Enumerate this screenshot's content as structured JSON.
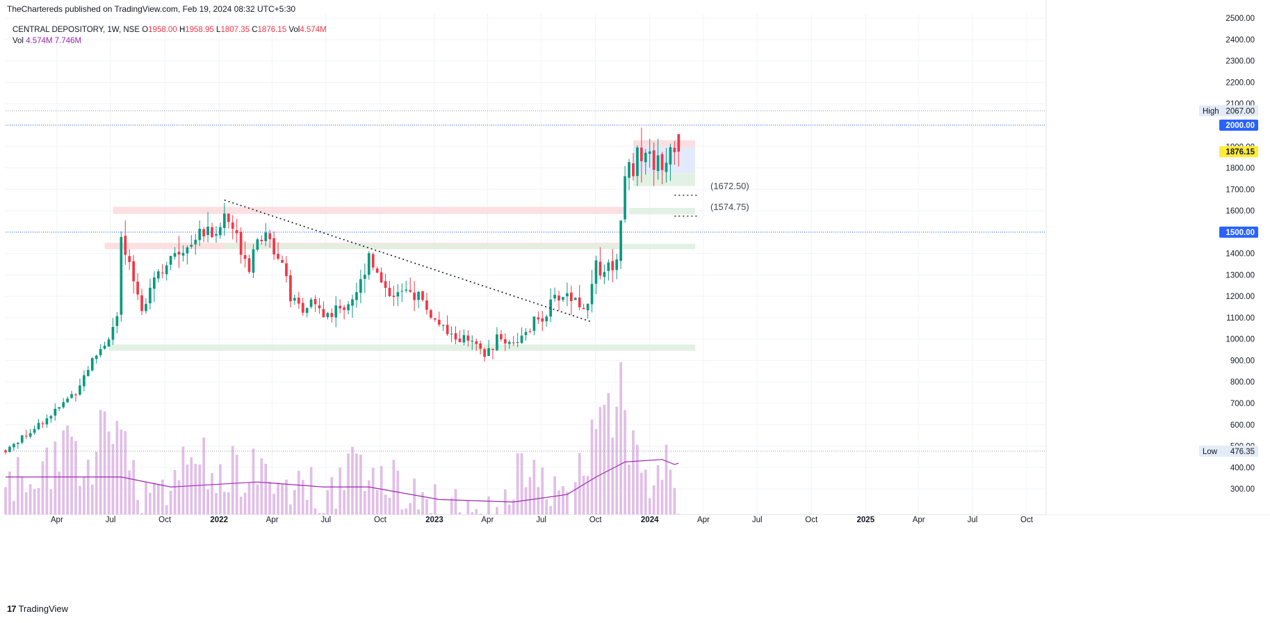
{
  "header": {
    "publisher_line": "TheChartereds published on TradingView.com, Feb 19, 2024 08:32 UTC+5:30"
  },
  "legend": {
    "symbol": "CENTRAL DEPOSITORY, 1W, NSE",
    "open_label": "O",
    "open": "1958.00",
    "high_label": "H",
    "high": "1958.95",
    "low_label": "L",
    "low": "1807.35",
    "close_label": "C",
    "close": "1876.15",
    "vol_label": "Vol",
    "vol": "4.574M",
    "vol_line_label": "Vol",
    "vol_line_v1": "4.574M",
    "vol_line_v2": "7.746M"
  },
  "footer": {
    "brand": "TradingView",
    "brand_mark": "17"
  },
  "colors": {
    "up": "#089981",
    "down": "#f23645",
    "volume": "#e1bee7",
    "volume_ma": "#9c27b0",
    "hline": "#2962ff",
    "resistance_zone": "#fbdcde",
    "support_zone": "#dff0e0"
  },
  "chart_data": {
    "type": "candlestick",
    "interval": "1W",
    "y_axis": {
      "ticks": [
        "300.00",
        "400.00",
        "500.00",
        "600.00",
        "700.00",
        "800.00",
        "900.00",
        "1000.00",
        "1100.00",
        "1200.00",
        "1300.00",
        "1400.00",
        "1500.00",
        "1600.00",
        "1700.00",
        "1800.00",
        "1900.00",
        "2000.00",
        "2100.00",
        "2200.00",
        "2300.00",
        "2400.00",
        "2500.00"
      ],
      "ylim": [
        180,
        2520
      ]
    },
    "x_axis": {
      "labels": [
        {
          "label": "Apr",
          "date": "2021-04-01"
        },
        {
          "label": "Jul",
          "date": "2021-07-01"
        },
        {
          "label": "Oct",
          "date": "2021-10-01"
        },
        {
          "label": "2022",
          "date": "2022-01-01"
        },
        {
          "label": "Apr",
          "date": "2022-04-01"
        },
        {
          "label": "Jul",
          "date": "2022-07-01"
        },
        {
          "label": "Oct",
          "date": "2022-10-01"
        },
        {
          "label": "2023",
          "date": "2023-01-01"
        },
        {
          "label": "Apr",
          "date": "2023-04-01"
        },
        {
          "label": "Jul",
          "date": "2023-07-01"
        },
        {
          "label": "Oct",
          "date": "2023-10-01"
        },
        {
          "label": "2024",
          "date": "2024-01-01"
        },
        {
          "label": "Apr",
          "date": "2024-04-01"
        },
        {
          "label": "Jul",
          "date": "2024-07-01"
        },
        {
          "label": "Oct",
          "date": "2024-10-01"
        },
        {
          "label": "2025",
          "date": "2025-01-01"
        },
        {
          "label": "Apr",
          "date": "2025-04-01"
        },
        {
          "label": "Jul",
          "date": "2025-07-01"
        },
        {
          "label": "Oct",
          "date": "2025-10-01"
        }
      ],
      "range": [
        "2021-01-04",
        "2025-11-03"
      ]
    },
    "price_path": [
      [
        "2021-01-04",
        480
      ],
      [
        "2021-02-01",
        540
      ],
      [
        "2021-03-01",
        600
      ],
      [
        "2021-04-05",
        680
      ],
      [
        "2021-05-03",
        760
      ],
      [
        "2021-05-31",
        900
      ],
      [
        "2021-06-28",
        1010
      ],
      [
        "2021-07-12",
        1100
      ],
      [
        "2021-07-19",
        1450
      ],
      [
        "2021-08-09",
        1270
      ],
      [
        "2021-08-23",
        1150
      ],
      [
        "2021-09-13",
        1300
      ],
      [
        "2021-10-11",
        1370
      ],
      [
        "2021-11-08",
        1440
      ],
      [
        "2021-11-22",
        1480
      ],
      [
        "2021-12-13",
        1530
      ],
      [
        "2021-12-27",
        1470
      ],
      [
        "2022-01-10",
        1580
      ],
      [
        "2022-01-24",
        1520
      ],
      [
        "2022-02-07",
        1430
      ],
      [
        "2022-02-21",
        1350
      ],
      [
        "2022-03-07",
        1490
      ],
      [
        "2022-03-21",
        1470
      ],
      [
        "2022-04-11",
        1400
      ],
      [
        "2022-04-25",
        1330
      ],
      [
        "2022-05-02",
        1180
      ],
      [
        "2022-05-23",
        1120
      ],
      [
        "2022-06-06",
        1180
      ],
      [
        "2022-06-27",
        1110
      ],
      [
        "2022-07-18",
        1130
      ],
      [
        "2022-08-08",
        1170
      ],
      [
        "2022-08-29",
        1260
      ],
      [
        "2022-09-12",
        1410
      ],
      [
        "2022-09-26",
        1300
      ],
      [
        "2022-10-17",
        1220
      ],
      [
        "2022-11-14",
        1210
      ],
      [
        "2022-12-05",
        1210
      ],
      [
        "2022-12-19",
        1140
      ],
      [
        "2023-01-09",
        1060
      ],
      [
        "2023-01-30",
        1010
      ],
      [
        "2023-02-20",
        1000
      ],
      [
        "2023-03-13",
        960
      ],
      [
        "2023-03-27",
        920
      ],
      [
        "2023-04-17",
        1000
      ],
      [
        "2023-05-15",
        990
      ],
      [
        "2023-06-05",
        1010
      ],
      [
        "2023-06-19",
        1080
      ],
      [
        "2023-07-10",
        1120
      ],
      [
        "2023-07-24",
        1190
      ],
      [
        "2023-08-14",
        1210
      ],
      [
        "2023-09-04",
        1170
      ],
      [
        "2023-09-18",
        1140
      ],
      [
        "2023-10-02",
        1340
      ],
      [
        "2023-10-16",
        1330
      ],
      [
        "2023-11-06",
        1370
      ],
      [
        "2023-11-13",
        1560
      ],
      [
        "2023-11-20",
        1810
      ],
      [
        "2023-12-04",
        1800
      ],
      [
        "2023-12-18",
        1890
      ],
      [
        "2024-01-08",
        1830
      ],
      [
        "2024-01-22",
        1790
      ],
      [
        "2024-02-05",
        1920
      ],
      [
        "2024-02-19",
        1876.15
      ]
    ],
    "volume_path": [
      [
        "2021-01-04",
        350
      ],
      [
        "2021-07-12",
        600
      ],
      [
        "2021-08-23",
        330
      ],
      [
        "2021-12-13",
        470
      ],
      [
        "2022-03-07",
        410
      ],
      [
        "2022-06-27",
        330
      ],
      [
        "2022-09-12",
        460
      ],
      [
        "2022-12-19",
        290
      ],
      [
        "2023-03-27",
        230
      ],
      [
        "2023-06-19",
        470
      ],
      [
        "2023-08-14",
        260
      ],
      [
        "2023-10-02",
        600
      ],
      [
        "2023-11-13",
        790
      ],
      [
        "2023-11-20",
        680
      ],
      [
        "2023-12-18",
        360
      ],
      [
        "2024-02-05",
        510
      ],
      [
        "2024-02-19",
        300
      ]
    ],
    "volume_ma_path": [
      [
        "2021-01-04",
        330
      ],
      [
        "2021-07-19",
        330
      ],
      [
        "2021-10-11",
        290
      ],
      [
        "2022-03-07",
        310
      ],
      [
        "2022-06-27",
        290
      ],
      [
        "2022-09-12",
        290
      ],
      [
        "2023-01-09",
        240
      ],
      [
        "2023-05-15",
        230
      ],
      [
        "2023-08-14",
        260
      ],
      [
        "2023-10-02",
        330
      ],
      [
        "2023-11-20",
        390
      ],
      [
        "2024-01-22",
        400
      ],
      [
        "2024-02-12",
        380
      ],
      [
        "2024-02-19",
        385
      ]
    ],
    "trendline": [
      [
        "2022-01-10",
        1650
      ],
      [
        "2023-09-25",
        1080
      ]
    ],
    "zones": [
      {
        "kind": "resistance",
        "start": "2021-07-05",
        "end": "2023-11-20",
        "low": 1585,
        "high": 1618
      },
      {
        "kind": "resistance",
        "start": "2021-06-21",
        "end": "2023-11-13",
        "low": 1420,
        "high": 1450
      },
      {
        "kind": "support",
        "start": "2021-06-28",
        "end": "2024-03-18",
        "low": 945,
        "high": 975
      },
      {
        "kind": "support",
        "start": "2022-01-10",
        "end": "2024-03-18",
        "low": 1420,
        "high": 1445
      },
      {
        "kind": "support",
        "start": "2023-11-27",
        "end": "2024-03-18",
        "low": 1583,
        "high": 1613
      },
      {
        "kind": "resistance",
        "start": "2023-12-04",
        "end": "2024-03-18",
        "low": 1897,
        "high": 1930
      },
      {
        "kind": "range",
        "start": "2023-12-04",
        "end": "2024-03-18",
        "low": 1775,
        "high": 1897
      },
      {
        "kind": "support",
        "start": "2023-12-04",
        "end": "2024-03-18",
        "low": 1715,
        "high": 1775
      }
    ],
    "dotted_levels": [
      {
        "value": 1672.5,
        "label": "(1672.50)",
        "start": "2024-02-12",
        "end": "2024-03-25"
      },
      {
        "value": 1574.75,
        "label": "(1574.75)",
        "start": "2024-02-12",
        "end": "2024-03-25"
      }
    ],
    "horizontal_lines": [
      {
        "value": 2000.0,
        "label": "2000.00"
      },
      {
        "value": 1500.0,
        "label": "1500.00"
      }
    ],
    "high_marker": {
      "label": "High",
      "value": 2067.0,
      "text": "2067.00"
    },
    "low_marker": {
      "label": "Low",
      "value": 476.35,
      "text": "476.35"
    },
    "last_price": {
      "value": 1876.15,
      "text": "1876.15"
    }
  }
}
